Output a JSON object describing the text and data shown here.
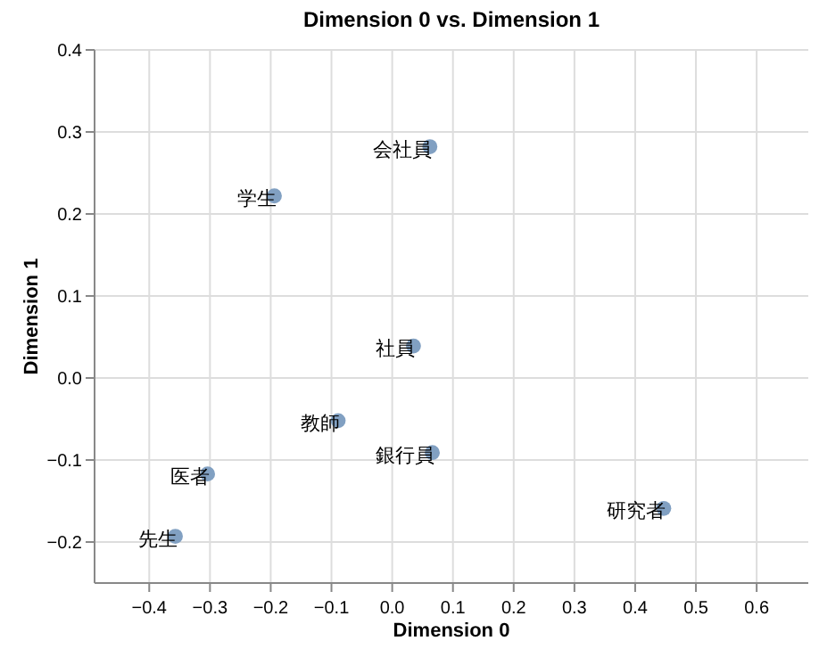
{
  "chart_data": {
    "type": "scatter",
    "title": "Dimension 0 vs. Dimension 1",
    "xlabel": "Dimension 0",
    "ylabel": "Dimension 1",
    "x": [
      0.062,
      -0.194,
      0.035,
      -0.089,
      0.066,
      -0.304,
      -0.357,
      0.447
    ],
    "values": [
      0.282,
      0.222,
      0.039,
      -0.052,
      -0.091,
      -0.117,
      -0.193,
      -0.159
    ],
    "color": "#81a0c2",
    "marker": "circle",
    "annotations": [
      {
        "text": "会社員",
        "x": 0.062,
        "y": 0.282
      },
      {
        "text": "学生",
        "x": -0.194,
        "y": 0.222
      },
      {
        "text": "社員",
        "x": 0.035,
        "y": 0.039
      },
      {
        "text": "教師",
        "x": -0.089,
        "y": -0.052
      },
      {
        "text": "銀行員",
        "x": 0.066,
        "y": -0.091
      },
      {
        "text": "医者",
        "x": -0.304,
        "y": -0.117
      },
      {
        "text": "先生",
        "x": -0.357,
        "y": -0.193
      },
      {
        "text": "研究者",
        "x": 0.447,
        "y": -0.159
      }
    ],
    "xlim": [
      -0.49,
      0.685
    ],
    "ylim": [
      -0.25,
      0.4
    ],
    "xticks": [
      {
        "value": -0.4,
        "label": "−0.4"
      },
      {
        "value": -0.3,
        "label": "−0.3"
      },
      {
        "value": -0.2,
        "label": "−0.2"
      },
      {
        "value": -0.1,
        "label": "−0.1"
      },
      {
        "value": 0,
        "label": "0.0"
      },
      {
        "value": 0.1,
        "label": "0.1"
      },
      {
        "value": 0.2,
        "label": "0.2"
      },
      {
        "value": 0.3,
        "label": "0.3"
      },
      {
        "value": 0.4,
        "label": "0.4"
      },
      {
        "value": 0.5,
        "label": "0.5"
      },
      {
        "value": 0.6,
        "label": "0.6"
      }
    ],
    "yticks": [
      {
        "value": -0.2,
        "label": "−0.2"
      },
      {
        "value": -0.1,
        "label": "−0.1"
      },
      {
        "value": 0,
        "label": "0.0"
      },
      {
        "value": 0.1,
        "label": "0.1"
      },
      {
        "value": 0.2,
        "label": "0.2"
      },
      {
        "value": 0.3,
        "label": "0.3"
      },
      {
        "value": 0.4,
        "label": "0.4"
      }
    ],
    "grid": true
  }
}
